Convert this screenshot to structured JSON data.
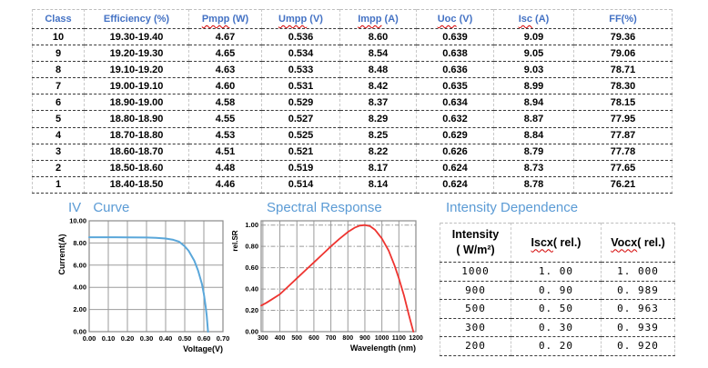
{
  "colors": {
    "header_text": "#4472c4",
    "title_text": "#5b9bd5",
    "iv_curve": "#5aa7da",
    "spectral_curve": "#ee3430",
    "grid": "#9b9b9b",
    "plot_border": "#8a8a8a",
    "squiggle": "#d40000"
  },
  "sections": {
    "iv_title": "IV Curve",
    "spectral_title": "Spectral Response",
    "intensity_title": "Intensity Dependence"
  },
  "main_table": {
    "columns": [
      {
        "text": "Class"
      },
      {
        "text": "Efficiency (%)"
      },
      {
        "word": "Pmpp",
        "rest": " (W)"
      },
      {
        "word": "Umpp",
        "rest": " (V)"
      },
      {
        "word": "Impp",
        "rest": " (A)"
      },
      {
        "word": "Uoc",
        "rest": " (V)"
      },
      {
        "word": "Isc",
        "rest": " (A)"
      },
      {
        "text": "FF(%)"
      }
    ],
    "rows": [
      [
        "10",
        "19.30-19.40",
        "4.67",
        "0.536",
        "8.60",
        "0.639",
        "9.09",
        "79.36"
      ],
      [
        "9",
        "19.20-19.30",
        "4.65",
        "0.534",
        "8.54",
        "0.638",
        "9.05",
        "79.06"
      ],
      [
        "8",
        "19.10-19.20",
        "4.63",
        "0.533",
        "8.48",
        "0.636",
        "9.03",
        "78.71"
      ],
      [
        "7",
        "19.00-19.10",
        "4.60",
        "0.531",
        "8.42",
        "0.635",
        "8.99",
        "78.30"
      ],
      [
        "6",
        "18.90-19.00",
        "4.58",
        "0.529",
        "8.37",
        "0.634",
        "8.94",
        "78.15"
      ],
      [
        "5",
        "18.80-18.90",
        "4.55",
        "0.527",
        "8.29",
        "0.632",
        "8.87",
        "77.95"
      ],
      [
        "4",
        "18.70-18.80",
        "4.53",
        "0.525",
        "8.25",
        "0.629",
        "8.84",
        "77.87"
      ],
      [
        "3",
        "18.60-18.70",
        "4.51",
        "0.521",
        "8.22",
        "0.626",
        "8.79",
        "77.78"
      ],
      [
        "2",
        "18.50-18.60",
        "4.48",
        "0.519",
        "8.17",
        "0.624",
        "8.73",
        "77.65"
      ],
      [
        "1",
        "18.40-18.50",
        "4.46",
        "0.514",
        "8.14",
        "0.624",
        "8.78",
        "76.21"
      ]
    ]
  },
  "intensity_table": {
    "columns": [
      {
        "lines": [
          "Intensity",
          "( W/m²)"
        ]
      },
      {
        "word": "Iscx",
        "rest": "( rel.)"
      },
      {
        "word": "Vocx",
        "rest": "( rel.)"
      }
    ],
    "rows": [
      [
        "1000",
        "1. 00",
        "1. 000"
      ],
      [
        "900",
        "0. 90",
        "0. 989"
      ],
      [
        "500",
        "0. 50",
        "0. 963"
      ],
      [
        "300",
        "0. 30",
        "0. 939"
      ],
      [
        "200",
        "0. 20",
        "0. 920"
      ]
    ]
  },
  "chart_data": [
    {
      "type": "line",
      "name": "iv-curve",
      "title": "IV Curve",
      "xlabel": "Voltage(V)",
      "ylabel": "Current(A)",
      "xlim": [
        0,
        0.7
      ],
      "ylim": [
        0,
        10
      ],
      "grid": "on",
      "legend": "none",
      "xticks": [
        0,
        0.1,
        0.2,
        0.3,
        0.4,
        0.5,
        0.6,
        0.7
      ],
      "xtick_labels": [
        "0.00",
        "0.10",
        "0.20",
        "0.30",
        "0.40",
        "0.50",
        "0.60",
        "0.70"
      ],
      "yticks": [
        0,
        2,
        4,
        6,
        8,
        10
      ],
      "ytick_labels": [
        "0.00",
        "2.00",
        "4.00",
        "6.00",
        "8.00",
        "10.00"
      ],
      "series": [
        {
          "name": "IV curve",
          "points": [
            [
              0,
              8.52
            ],
            [
              0.1,
              8.52
            ],
            [
              0.2,
              8.51
            ],
            [
              0.3,
              8.49
            ],
            [
              0.35,
              8.46
            ],
            [
              0.4,
              8.4
            ],
            [
              0.44,
              8.29
            ],
            [
              0.47,
              8.12
            ],
            [
              0.5,
              7.7
            ],
            [
              0.52,
              7.3
            ],
            [
              0.55,
              6.4
            ],
            [
              0.57,
              5.5
            ],
            [
              0.59,
              4.3
            ],
            [
              0.6,
              3.4
            ],
            [
              0.61,
              2.2
            ],
            [
              0.615,
              1.4
            ],
            [
              0.622,
              0
            ]
          ]
        }
      ]
    },
    {
      "type": "line",
      "name": "spectral-response",
      "title": "Spectral Response",
      "xlabel": "Wavelength (nm)",
      "ylabel": "rel.SR",
      "xlim": [
        290,
        1200
      ],
      "ylim": [
        0,
        1.04
      ],
      "grid": "on",
      "legend": "none",
      "xticks": [
        300,
        400,
        500,
        600,
        700,
        800,
        900,
        1000,
        1100,
        1200
      ],
      "xtick_labels": [
        "300",
        "400",
        "500",
        "600",
        "700",
        "800",
        "900",
        "1000",
        "1100",
        "1200"
      ],
      "yticks": [
        0,
        0.2,
        0.4,
        0.6,
        0.8,
        1.0
      ],
      "ytick_labels": [
        "0.00",
        "0.20",
        "0.40",
        "0.60",
        "0.80",
        "1.00"
      ],
      "series": [
        {
          "name": "rel. spectral response",
          "points": [
            [
              290,
              0.245
            ],
            [
              320,
              0.27
            ],
            [
              350,
              0.3
            ],
            [
              400,
              0.35
            ],
            [
              450,
              0.425
            ],
            [
              500,
              0.5
            ],
            [
              550,
              0.575
            ],
            [
              600,
              0.65
            ],
            [
              650,
              0.725
            ],
            [
              700,
              0.8
            ],
            [
              750,
              0.87
            ],
            [
              800,
              0.935
            ],
            [
              840,
              0.975
            ],
            [
              870,
              0.995
            ],
            [
              900,
              1.0
            ],
            [
              930,
              0.99
            ],
            [
              960,
              0.955
            ],
            [
              1000,
              0.875
            ],
            [
              1040,
              0.76
            ],
            [
              1075,
              0.62
            ],
            [
              1100,
              0.5
            ],
            [
              1130,
              0.34
            ],
            [
              1160,
              0.15
            ],
            [
              1185,
              0.0
            ]
          ]
        }
      ]
    }
  ]
}
